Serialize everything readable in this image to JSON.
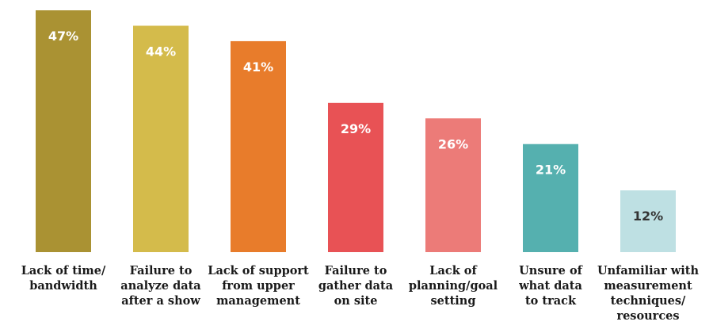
{
  "chart_data": {
    "type": "bar",
    "categories": [
      [
        "Lack of time/",
        "bandwidth"
      ],
      [
        "Failure to",
        "analyze data",
        "after a show"
      ],
      [
        "Lack of support",
        "from upper",
        "management"
      ],
      [
        "Failure to",
        "gather data",
        "on site"
      ],
      [
        "Lack of",
        "planning/goal",
        "setting"
      ],
      [
        "Unsure of",
        "what data",
        "to track"
      ],
      [
        "Unfamiliar with",
        "measurement",
        "techniques/",
        "resources"
      ]
    ],
    "values": [
      47,
      44,
      41,
      29,
      26,
      21,
      12
    ],
    "data_labels": [
      "47%",
      "44%",
      "41%",
      "29%",
      "26%",
      "21%",
      "12%"
    ],
    "colors": [
      "#AA9233",
      "#D4BB4B",
      "#E87C2B",
      "#E85255",
      "#EC7B78",
      "#55B0AF",
      "#BEE0E3"
    ],
    "label_colors": [
      "#ffffff",
      "#ffffff",
      "#ffffff",
      "#ffffff",
      "#ffffff",
      "#ffffff",
      "#333333"
    ],
    "ylim": [
      0,
      47
    ],
    "grid": false,
    "legend": "none"
  }
}
